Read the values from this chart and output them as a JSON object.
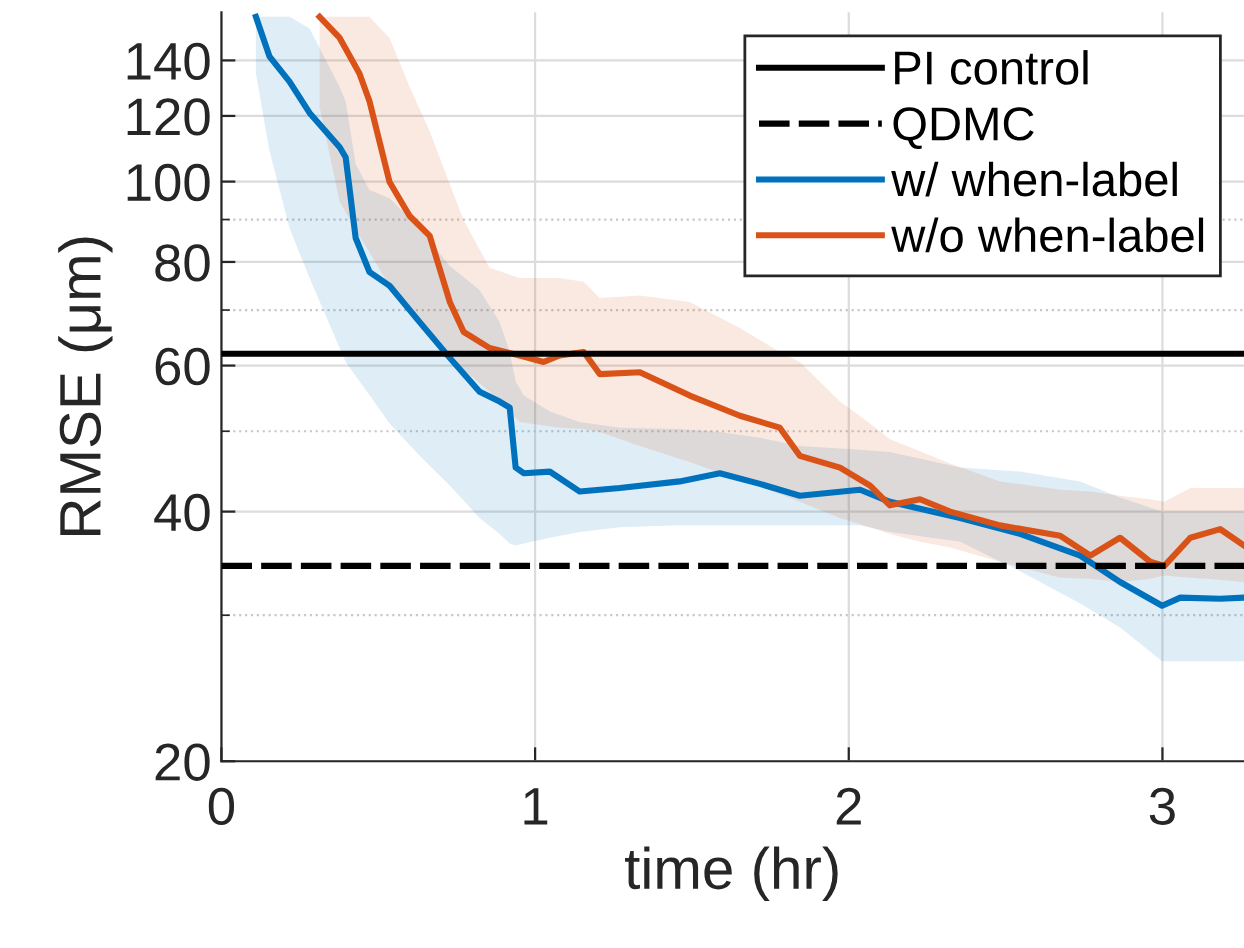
{
  "chart_data": {
    "type": "line",
    "xlabel": "time (hr)",
    "ylabel": "RMSE (μm)",
    "log": "y",
    "grid": true,
    "legend": "top right",
    "line_style": "solid",
    "marker": "none",
    "xlim": [
      0,
      3.26
    ],
    "xticks": [
      0,
      1,
      2,
      3
    ],
    "ylim": [
      20,
      160
    ],
    "yticks": [
      20,
      {
        "value": 30,
        "label": null
      },
      40,
      {
        "value": 50,
        "label": null
      },
      60,
      {
        "value": 70,
        "label": null
      },
      80,
      {
        "value": 90,
        "label": null
      },
      100,
      120,
      140
    ],
    "ref_lines": [
      {
        "axis": "y",
        "value": 62.0,
        "label": "PI control",
        "color": "#000000",
        "line_style": "solid"
      },
      {
        "axis": "y",
        "value": 34.4,
        "label": "QDMC",
        "color": "#000000",
        "line_style": "dashed"
      }
    ],
    "series": [
      {
        "name": "w/ when-label",
        "color": "#0072bd",
        "x": [
          0.11,
          0.153,
          0.217,
          0.281,
          0.377,
          0.396,
          0.428,
          0.472,
          0.536,
          0.632,
          0.728,
          0.823,
          0.887,
          0.919,
          0.938,
          0.964,
          1.047,
          1.142,
          1.27,
          1.461,
          1.589,
          1.717,
          1.844,
          2.036,
          2.131,
          2.355,
          2.546,
          2.738,
          2.865,
          2.999,
          3.057,
          3.184,
          3.26
        ],
        "values": [
          158,
          141.6,
          132,
          121,
          110,
          107,
          85.5,
          77.8,
          74.9,
          67.7,
          61.3,
          55.8,
          54.3,
          53.4,
          45.2,
          44.5,
          44.7,
          42.3,
          42.7,
          43.5,
          44.5,
          43.2,
          41.8,
          42.5,
          41.1,
          39.3,
          37.6,
          35.4,
          32.9,
          30.8,
          31.5,
          31.4,
          31.5
        ],
        "lower": [
          135,
          109,
          87.9,
          76.5,
          63.0,
          60.6,
          58.3,
          55.3,
          51.1,
          46.7,
          43.0,
          39.3,
          37.6,
          36.6,
          36.4,
          36.6,
          37.2,
          37.8,
          38.3,
          38.5,
          38.5,
          38.5,
          38.5,
          38.5,
          37.8,
          36.8,
          33.9,
          31.0,
          29.0,
          26.4,
          26.4,
          26.4,
          26.4
        ],
        "upper": [
          158,
          158,
          158,
          153,
          130,
          125,
          105,
          97.7,
          95.5,
          87.9,
          79.1,
          74.0,
          67.7,
          62.3,
          57.4,
          55.2,
          52.8,
          51.3,
          50.5,
          50.3,
          49.9,
          49.1,
          48.0,
          47.5,
          47.2,
          45.2,
          44.7,
          43.5,
          41.6,
          40,
          40,
          40,
          40
        ]
      },
      {
        "name": "w/o when-label",
        "color": "#d95319",
        "x": [
          0.313,
          0.377,
          0.44,
          0.472,
          0.536,
          0.6,
          0.664,
          0.728,
          0.772,
          0.855,
          0.951,
          1.027,
          1.078,
          1.155,
          1.206,
          1.334,
          1.493,
          1.653,
          1.78,
          1.844,
          1.972,
          2.068,
          2.131,
          2.227,
          2.323,
          2.482,
          2.674,
          2.77,
          2.865,
          2.961,
          3.006,
          3.089,
          3.184,
          3.26
        ],
        "values": [
          158,
          149,
          135,
          125,
          99.9,
          90.9,
          86,
          71.6,
          65.9,
          63.0,
          61.7,
          60.6,
          61.7,
          62.3,
          58.6,
          58.9,
          55.2,
          52.2,
          50.5,
          46.7,
          45.2,
          43.0,
          40.7,
          41.4,
          40,
          38.5,
          37.4,
          35.4,
          37.2,
          34.8,
          34.4,
          37.2,
          38.1,
          36.4
        ],
        "lower": [
          123,
          94.5,
          86.0,
          82.2,
          74.9,
          69.6,
          65.9,
          62.3,
          59.3,
          55.8,
          51.3,
          50.8,
          50.5,
          50.3,
          49.9,
          48.0,
          45.9,
          43.7,
          42.0,
          41.1,
          39.3,
          38.3,
          37.6,
          36.8,
          36.2,
          34.8,
          33.3,
          33.2,
          32.9,
          33.2,
          33.5,
          33.3,
          33.1,
          32.9
        ],
        "upper": [
          158,
          158,
          158,
          158,
          149,
          130,
          115,
          99.3,
          89.9,
          78.7,
          76.5,
          76.5,
          76.5,
          75.7,
          72.4,
          72.9,
          71.6,
          66.6,
          62.3,
          60.6,
          54.3,
          51.1,
          48.9,
          47.3,
          45.7,
          43.5,
          42.5,
          42.3,
          41.8,
          41.4,
          41.1,
          42.7,
          42.7,
          42.7
        ]
      }
    ]
  }
}
